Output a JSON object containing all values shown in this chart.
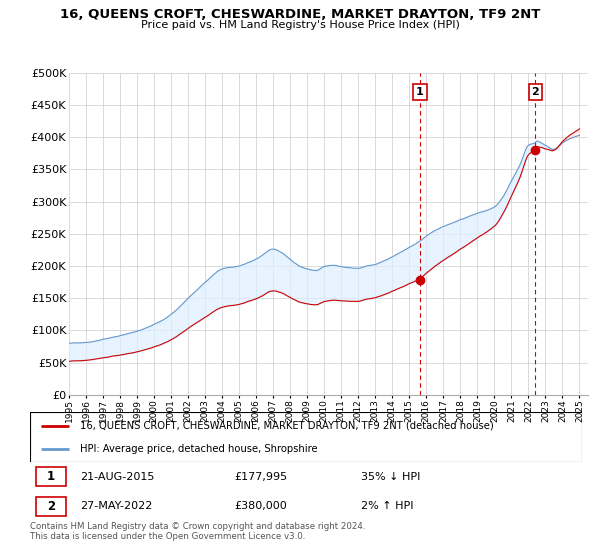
{
  "title": "16, QUEENS CROFT, CHESWARDINE, MARKET DRAYTON, TF9 2NT",
  "subtitle": "Price paid vs. HM Land Registry's House Price Index (HPI)",
  "property_label": "16, QUEENS CROFT, CHESWARDINE, MARKET DRAYTON, TF9 2NT (detached house)",
  "hpi_label": "HPI: Average price, detached house, Shropshire",
  "sale1_date": "21-AUG-2015",
  "sale1_price": "£177,995",
  "sale1_hpi": "35% ↓ HPI",
  "sale2_date": "27-MAY-2022",
  "sale2_price": "£380,000",
  "sale2_hpi": "2% ↑ HPI",
  "footer": "Contains HM Land Registry data © Crown copyright and database right 2024.\nThis data is licensed under the Open Government Licence v3.0.",
  "property_color": "#cc0000",
  "hpi_color": "#6699cc",
  "fill_color": "#ddeeff",
  "vline_color": "#cc0000",
  "ylim": [
    0,
    500000
  ],
  "yticks": [
    0,
    50000,
    100000,
    150000,
    200000,
    250000,
    300000,
    350000,
    400000,
    450000,
    500000
  ],
  "sale1_x": 2015.63,
  "sale1_y": 177995,
  "sale2_x": 2022.41,
  "sale2_y": 380000,
  "xmin": 1995.0,
  "xmax": 2025.5
}
